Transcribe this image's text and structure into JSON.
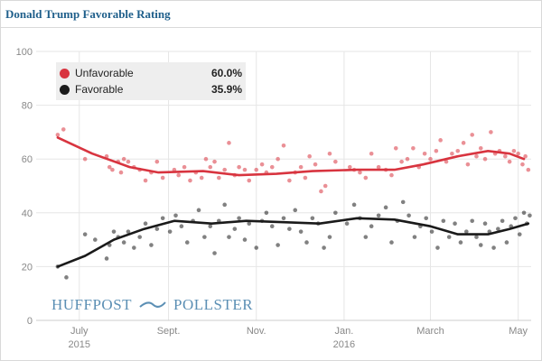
{
  "title": "Donald Trump Favorable Rating",
  "brand": {
    "left": "HUFFPOST",
    "right": "POLLSTER",
    "icon": "pollster-swoosh-icon"
  },
  "colors": {
    "unfavorable": "#d8343f",
    "favorable": "#1a1a1a",
    "title": "#1f5f8b",
    "grid": "#e6e6e6",
    "tick": "#888888"
  },
  "legend": {
    "items": [
      {
        "name": "Unfavorable",
        "value": "60.0%"
      },
      {
        "name": "Favorable",
        "value": "35.9%"
      }
    ]
  },
  "chart_data": {
    "type": "scatter",
    "title": "Donald Trump Favorable Rating",
    "ylim": [
      0,
      100
    ],
    "y_ticks": [
      "0",
      "20",
      "40",
      "60",
      "80",
      "100"
    ],
    "x_ticks": [
      {
        "date": "2015-07-01",
        "label": "July",
        "sublabel": "2015"
      },
      {
        "date": "2015-09-01",
        "label": "Sept.",
        "sublabel": ""
      },
      {
        "date": "2015-11-01",
        "label": "Nov.",
        "sublabel": ""
      },
      {
        "date": "2016-01-01",
        "label": "Jan.",
        "sublabel": "2016"
      },
      {
        "date": "2016-03-01",
        "label": "March",
        "sublabel": ""
      },
      {
        "date": "2016-05-01",
        "label": "May",
        "sublabel": ""
      }
    ],
    "xlim": [
      "2015-06-01",
      "2016-05-10"
    ],
    "grid": true,
    "legend": "top-left",
    "series": [
      {
        "name": "Unfavorable",
        "trend": [
          [
            "2015-06-16",
            68
          ],
          [
            "2015-07-10",
            62
          ],
          [
            "2015-08-05",
            57
          ],
          [
            "2015-08-25",
            55
          ],
          [
            "2015-09-25",
            55.5
          ],
          [
            "2015-10-20",
            54
          ],
          [
            "2015-11-15",
            54.5
          ],
          [
            "2015-12-10",
            55.5
          ],
          [
            "2016-01-10",
            56
          ],
          [
            "2016-02-05",
            56
          ],
          [
            "2016-02-25",
            58
          ],
          [
            "2016-03-20",
            61
          ],
          [
            "2016-04-10",
            63
          ],
          [
            "2016-04-25",
            62
          ],
          [
            "2016-05-05",
            60
          ]
        ],
        "points": [
          [
            "2015-06-16",
            69
          ],
          [
            "2015-06-20",
            71
          ],
          [
            "2015-07-05",
            60
          ],
          [
            "2015-07-20",
            61
          ],
          [
            "2015-07-22",
            57
          ],
          [
            "2015-07-24",
            56
          ],
          [
            "2015-07-28",
            59
          ],
          [
            "2015-07-30",
            55
          ],
          [
            "2015-08-01",
            60
          ],
          [
            "2015-08-04",
            59
          ],
          [
            "2015-08-08",
            57
          ],
          [
            "2015-08-12",
            56
          ],
          [
            "2015-08-16",
            52
          ],
          [
            "2015-08-20",
            55
          ],
          [
            "2015-08-24",
            59
          ],
          [
            "2015-08-28",
            53
          ],
          [
            "2015-09-05",
            56
          ],
          [
            "2015-09-08",
            54
          ],
          [
            "2015-09-12",
            57
          ],
          [
            "2015-09-16",
            52
          ],
          [
            "2015-09-20",
            55
          ],
          [
            "2015-09-24",
            53
          ],
          [
            "2015-09-27",
            60
          ],
          [
            "2015-09-30",
            57
          ],
          [
            "2015-10-03",
            59
          ],
          [
            "2015-10-06",
            53
          ],
          [
            "2015-10-10",
            56
          ],
          [
            "2015-10-13",
            66
          ],
          [
            "2015-10-17",
            54
          ],
          [
            "2015-10-20",
            57
          ],
          [
            "2015-10-24",
            56
          ],
          [
            "2015-10-27",
            52
          ],
          [
            "2015-11-01",
            56
          ],
          [
            "2015-11-05",
            58
          ],
          [
            "2015-11-08",
            55
          ],
          [
            "2015-11-12",
            57
          ],
          [
            "2015-11-16",
            60
          ],
          [
            "2015-11-20",
            65
          ],
          [
            "2015-11-24",
            52
          ],
          [
            "2015-11-28",
            55
          ],
          [
            "2015-12-02",
            57
          ],
          [
            "2015-12-05",
            53
          ],
          [
            "2015-12-08",
            61
          ],
          [
            "2015-12-12",
            58
          ],
          [
            "2015-12-16",
            48
          ],
          [
            "2015-12-19",
            50
          ],
          [
            "2015-12-22",
            62
          ],
          [
            "2015-12-26",
            59
          ],
          [
            "2016-01-05",
            57
          ],
          [
            "2016-01-08",
            56
          ],
          [
            "2016-01-12",
            55
          ],
          [
            "2016-01-16",
            53
          ],
          [
            "2016-01-20",
            62
          ],
          [
            "2016-01-25",
            57
          ],
          [
            "2016-01-30",
            56
          ],
          [
            "2016-02-03",
            54
          ],
          [
            "2016-02-06",
            64
          ],
          [
            "2016-02-10",
            59
          ],
          [
            "2016-02-14",
            60
          ],
          [
            "2016-02-18",
            64
          ],
          [
            "2016-02-22",
            57
          ],
          [
            "2016-02-26",
            62
          ],
          [
            "2016-03-01",
            60
          ],
          [
            "2016-03-05",
            63
          ],
          [
            "2016-03-08",
            67
          ],
          [
            "2016-03-12",
            59
          ],
          [
            "2016-03-16",
            62
          ],
          [
            "2016-03-20",
            63
          ],
          [
            "2016-03-24",
            66
          ],
          [
            "2016-03-27",
            58
          ],
          [
            "2016-03-30",
            69
          ],
          [
            "2016-04-02",
            61
          ],
          [
            "2016-04-05",
            64
          ],
          [
            "2016-04-08",
            60
          ],
          [
            "2016-04-12",
            70
          ],
          [
            "2016-04-15",
            62
          ],
          [
            "2016-04-18",
            63
          ],
          [
            "2016-04-22",
            61
          ],
          [
            "2016-04-25",
            59
          ],
          [
            "2016-04-28",
            63
          ],
          [
            "2016-05-01",
            62
          ],
          [
            "2016-05-04",
            58
          ],
          [
            "2016-05-06",
            61
          ],
          [
            "2016-05-08",
            56
          ]
        ]
      },
      {
        "name": "Favorable",
        "trend": [
          [
            "2015-06-16",
            20
          ],
          [
            "2015-07-05",
            24
          ],
          [
            "2015-07-25",
            30
          ],
          [
            "2015-08-15",
            34
          ],
          [
            "2015-09-05",
            37
          ],
          [
            "2015-10-01",
            36
          ],
          [
            "2015-10-25",
            37
          ],
          [
            "2015-11-20",
            36.5
          ],
          [
            "2015-12-15",
            36
          ],
          [
            "2016-01-10",
            38
          ],
          [
            "2016-02-05",
            37.5
          ],
          [
            "2016-03-01",
            35
          ],
          [
            "2016-03-20",
            32
          ],
          [
            "2016-04-10",
            32
          ],
          [
            "2016-04-25",
            34
          ],
          [
            "2016-05-08",
            36
          ]
        ],
        "points": [
          [
            "2015-06-16",
            20
          ],
          [
            "2015-06-22",
            16
          ],
          [
            "2015-07-05",
            32
          ],
          [
            "2015-07-12",
            30
          ],
          [
            "2015-07-20",
            23
          ],
          [
            "2015-07-22",
            28
          ],
          [
            "2015-07-25",
            33
          ],
          [
            "2015-07-28",
            31
          ],
          [
            "2015-08-01",
            29
          ],
          [
            "2015-08-04",
            33
          ],
          [
            "2015-08-08",
            27
          ],
          [
            "2015-08-12",
            31
          ],
          [
            "2015-08-16",
            36
          ],
          [
            "2015-08-20",
            28
          ],
          [
            "2015-08-24",
            34
          ],
          [
            "2015-08-28",
            38
          ],
          [
            "2015-09-02",
            33
          ],
          [
            "2015-09-06",
            39
          ],
          [
            "2015-09-10",
            35
          ],
          [
            "2015-09-14",
            29
          ],
          [
            "2015-09-18",
            37
          ],
          [
            "2015-09-22",
            41
          ],
          [
            "2015-09-26",
            31
          ],
          [
            "2015-09-30",
            35
          ],
          [
            "2015-10-03",
            25
          ],
          [
            "2015-10-06",
            37
          ],
          [
            "2015-10-10",
            43
          ],
          [
            "2015-10-13",
            31
          ],
          [
            "2015-10-17",
            34
          ],
          [
            "2015-10-20",
            38
          ],
          [
            "2015-10-24",
            30
          ],
          [
            "2015-10-27",
            36
          ],
          [
            "2015-11-01",
            27
          ],
          [
            "2015-11-05",
            37
          ],
          [
            "2015-11-08",
            40
          ],
          [
            "2015-11-12",
            35
          ],
          [
            "2015-11-16",
            28
          ],
          [
            "2015-11-20",
            38
          ],
          [
            "2015-11-24",
            34
          ],
          [
            "2015-11-28",
            41
          ],
          [
            "2015-12-02",
            33
          ],
          [
            "2015-12-06",
            29
          ],
          [
            "2015-12-10",
            38
          ],
          [
            "2015-12-14",
            36
          ],
          [
            "2015-12-18",
            27
          ],
          [
            "2015-12-22",
            31
          ],
          [
            "2015-12-26",
            40
          ],
          [
            "2016-01-03",
            36
          ],
          [
            "2016-01-08",
            43
          ],
          [
            "2016-01-12",
            38
          ],
          [
            "2016-01-16",
            31
          ],
          [
            "2016-01-20",
            35
          ],
          [
            "2016-01-25",
            39
          ],
          [
            "2016-01-30",
            42
          ],
          [
            "2016-02-03",
            29
          ],
          [
            "2016-02-07",
            37
          ],
          [
            "2016-02-11",
            44
          ],
          [
            "2016-02-15",
            39
          ],
          [
            "2016-02-19",
            31
          ],
          [
            "2016-02-23",
            35
          ],
          [
            "2016-02-27",
            38
          ],
          [
            "2016-03-02",
            33
          ],
          [
            "2016-03-06",
            27
          ],
          [
            "2016-03-10",
            37
          ],
          [
            "2016-03-14",
            31
          ],
          [
            "2016-03-18",
            36
          ],
          [
            "2016-03-22",
            29
          ],
          [
            "2016-03-26",
            33
          ],
          [
            "2016-03-30",
            37
          ],
          [
            "2016-04-02",
            31
          ],
          [
            "2016-04-05",
            28
          ],
          [
            "2016-04-08",
            36
          ],
          [
            "2016-04-11",
            33
          ],
          [
            "2016-04-14",
            27
          ],
          [
            "2016-04-17",
            34
          ],
          [
            "2016-04-20",
            37
          ],
          [
            "2016-04-23",
            29
          ],
          [
            "2016-04-26",
            35
          ],
          [
            "2016-04-29",
            38
          ],
          [
            "2016-05-02",
            32
          ],
          [
            "2016-05-05",
            40
          ],
          [
            "2016-05-07",
            36
          ],
          [
            "2016-05-09",
            39
          ]
        ]
      }
    ]
  }
}
